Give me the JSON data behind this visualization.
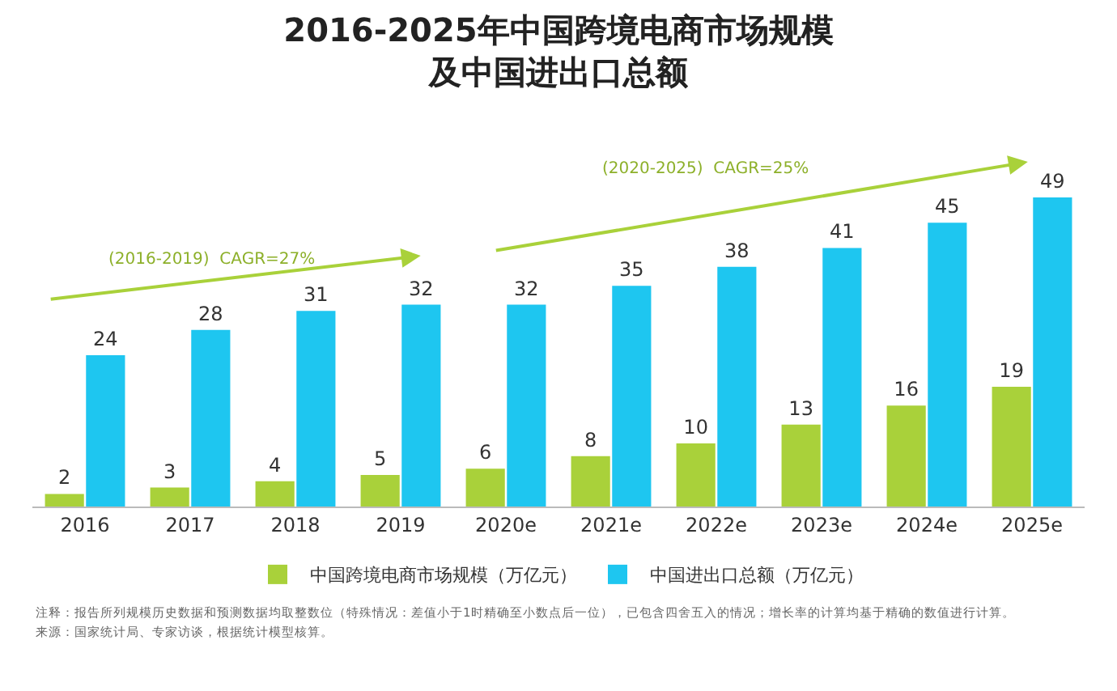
{
  "chart_data": {
    "type": "bar",
    "title": "2016-2025年中国跨境电商市场规模及中国进出口总额",
    "categories": [
      "2016",
      "2017",
      "2018",
      "2019",
      "2020e",
      "2021e",
      "2022e",
      "2023e",
      "2024e",
      "2025e"
    ],
    "series": [
      {
        "name": "中国跨境电商市场规模（万亿元）",
        "color": "#a9d13a",
        "values": [
          2,
          3,
          4,
          5,
          6,
          8,
          10,
          13,
          16,
          19
        ]
      },
      {
        "name": "中国进出口总额（万亿元）",
        "color": "#1ec6f0",
        "values": [
          24,
          28,
          31,
          32,
          32,
          35,
          38,
          41,
          45,
          49
        ]
      }
    ],
    "data_labels": true,
    "legend": "bottom",
    "tick_labels": "x",
    "grid": false,
    "annotations": [
      "(2016-2019)  CAGR=27%",
      "(2020-2025)  CAGR=25%",
      "注释：报告所列规模历史数据和预测数据均取整数位（特殊情况：差值小于1时精确至小数点后一位），已包含四舍五入的情况；增长率的计算均基于精确的数值进行计算。",
      "来源：国家统计局、专家访谈，根据统计模型核算。"
    ]
  }
}
